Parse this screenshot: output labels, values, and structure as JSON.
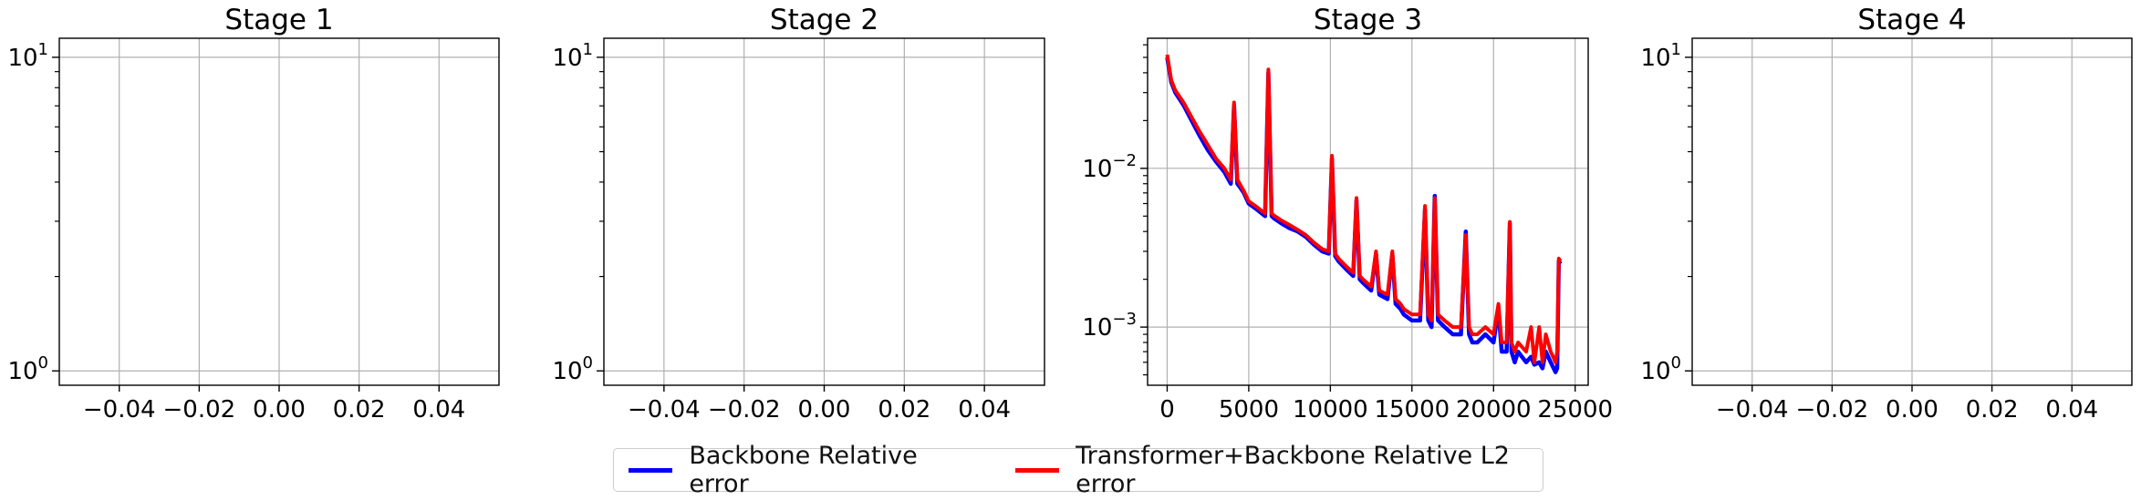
{
  "chart_data": [
    {
      "type": "line",
      "title": "Stage 1",
      "yscale": "log",
      "xlim": [
        -0.055,
        0.055
      ],
      "ylim": [
        0.9,
        11.5
      ],
      "xticks": [
        -0.04,
        -0.02,
        0.0,
        0.02,
        0.04
      ],
      "xtick_labels": [
        "−0.04",
        "−0.02",
        "0.00",
        "0.02",
        "0.04"
      ],
      "yticks": [
        1,
        10
      ],
      "ytick_labels": [
        [
          "10",
          "0"
        ],
        [
          "10",
          "1"
        ]
      ],
      "grid": true,
      "series": []
    },
    {
      "type": "line",
      "title": "Stage 2",
      "yscale": "log",
      "xlim": [
        -0.055,
        0.055
      ],
      "ylim": [
        0.9,
        11.5
      ],
      "xticks": [
        -0.04,
        -0.02,
        0.0,
        0.02,
        0.04
      ],
      "xtick_labels": [
        "−0.04",
        "−0.02",
        "0.00",
        "0.02",
        "0.04"
      ],
      "yticks": [
        1,
        10
      ],
      "ytick_labels": [
        [
          "10",
          "0"
        ],
        [
          "10",
          "1"
        ]
      ],
      "grid": true,
      "series": []
    },
    {
      "type": "line",
      "title": "Stage 3",
      "yscale": "log",
      "xlim": [
        -1200,
        25800
      ],
      "ylim": [
        0.00043,
        0.066
      ],
      "xticks": [
        0,
        5000,
        10000,
        15000,
        20000,
        25000
      ],
      "xtick_labels": [
        "0",
        "5000",
        "10000",
        "15000",
        "20000",
        "25000"
      ],
      "yticks": [
        0.001,
        0.01
      ],
      "ytick_labels": [
        [
          "10",
          "−3"
        ],
        [
          "10",
          "−2"
        ]
      ],
      "grid": true,
      "series": [
        {
          "name": "Backbone Relative error",
          "color": "#0000ff",
          "x": [
            0,
            250,
            500,
            1000,
            1500,
            2000,
            2500,
            3000,
            3500,
            3900,
            4100,
            4300,
            4500,
            4700,
            5000,
            5500,
            6000,
            6200,
            6400,
            6600,
            7000,
            7500,
            8000,
            8500,
            9000,
            9500,
            9900,
            10100,
            10300,
            10500,
            11000,
            11400,
            11600,
            11800,
            12000,
            12500,
            12800,
            13000,
            13500,
            13800,
            14000,
            14300,
            14500,
            15000,
            15500,
            15800,
            16000,
            16200,
            16400,
            16600,
            17000,
            17500,
            18000,
            18300,
            18500,
            18700,
            19000,
            19500,
            20000,
            20300,
            20500,
            20800,
            21000,
            21100,
            21300,
            21500,
            22000,
            22300,
            22500,
            22800,
            23000,
            23200,
            23500,
            23800,
            23900,
            24000,
            24100
          ],
          "y": [
            0.05,
            0.035,
            0.03,
            0.025,
            0.02,
            0.016,
            0.013,
            0.011,
            0.0095,
            0.008,
            0.025,
            0.008,
            0.0075,
            0.007,
            0.006,
            0.0055,
            0.005,
            0.04,
            0.005,
            0.0048,
            0.0045,
            0.0042,
            0.004,
            0.0037,
            0.0033,
            0.003,
            0.0029,
            0.0115,
            0.0028,
            0.0026,
            0.0023,
            0.0021,
            0.0063,
            0.002,
            0.0019,
            0.0017,
            0.0029,
            0.0016,
            0.0015,
            0.0029,
            0.0014,
            0.0013,
            0.0012,
            0.0011,
            0.0011,
            0.0055,
            0.0011,
            0.001,
            0.0067,
            0.0011,
            0.001,
            0.0009,
            0.0009,
            0.004,
            0.0009,
            0.0008,
            0.0008,
            0.0009,
            0.0008,
            0.0013,
            0.0007,
            0.0007,
            0.0045,
            0.0007,
            0.0006,
            0.0007,
            0.0006,
            0.00065,
            0.00058,
            0.0006,
            0.00055,
            0.0007,
            0.0006,
            0.00052,
            0.00055,
            0.0026,
            0.0025
          ]
        },
        {
          "name": "Transformer+Backbone Relative L2 error",
          "color": "#ff0000",
          "x": [
            0,
            250,
            500,
            1000,
            1500,
            2000,
            2500,
            3000,
            3500,
            3900,
            4100,
            4300,
            4500,
            4700,
            5000,
            5500,
            6000,
            6200,
            6400,
            6600,
            7000,
            7500,
            8000,
            8500,
            9000,
            9500,
            9900,
            10100,
            10300,
            10500,
            11000,
            11400,
            11600,
            11800,
            12000,
            12500,
            12800,
            13000,
            13500,
            13800,
            14000,
            14300,
            14500,
            15000,
            15500,
            15800,
            16000,
            16200,
            16400,
            16600,
            17000,
            17500,
            18000,
            18300,
            18500,
            18700,
            19000,
            19500,
            20000,
            20300,
            20500,
            20800,
            21000,
            21100,
            21300,
            21500,
            22000,
            22300,
            22500,
            22800,
            23000,
            23200,
            23500,
            23800,
            23900,
            24000,
            24100
          ],
          "y": [
            0.052,
            0.036,
            0.031,
            0.026,
            0.021,
            0.017,
            0.014,
            0.0115,
            0.01,
            0.0085,
            0.026,
            0.0085,
            0.0078,
            0.0072,
            0.0062,
            0.0057,
            0.0052,
            0.042,
            0.0052,
            0.005,
            0.0047,
            0.0044,
            0.0041,
            0.0038,
            0.0034,
            0.0031,
            0.003,
            0.012,
            0.0029,
            0.0027,
            0.0024,
            0.0022,
            0.0065,
            0.0021,
            0.002,
            0.0018,
            0.003,
            0.0017,
            0.0016,
            0.003,
            0.0015,
            0.0014,
            0.0013,
            0.0012,
            0.0012,
            0.0058,
            0.0012,
            0.0011,
            0.0065,
            0.0012,
            0.0011,
            0.001,
            0.001,
            0.0038,
            0.001,
            0.0009,
            0.0009,
            0.001,
            0.0009,
            0.0014,
            0.0008,
            0.0008,
            0.0046,
            0.0008,
            0.0007,
            0.0008,
            0.0007,
            0.001,
            0.0006,
            0.001,
            0.0006,
            0.0009,
            0.0007,
            0.0006,
            0.0007,
            0.0027,
            0.0026
          ]
        }
      ]
    },
    {
      "type": "line",
      "title": "Stage 4",
      "yscale": "log",
      "xlim": [
        -0.055,
        0.055
      ],
      "ylim": [
        0.9,
        11.5
      ],
      "xticks": [
        -0.04,
        -0.02,
        0.0,
        0.02,
        0.04
      ],
      "xtick_labels": [
        "−0.04",
        "−0.02",
        "0.00",
        "0.02",
        "0.04"
      ],
      "yticks": [
        1,
        10
      ],
      "ytick_labels": [
        [
          "10",
          "0"
        ],
        [
          "10",
          "1"
        ]
      ],
      "grid": true,
      "series": []
    }
  ],
  "legend": {
    "placement": "bottom-center",
    "entries": [
      {
        "label": "Backbone Relative error",
        "color": "#0000ff"
      },
      {
        "label": "Transformer+Backbone Relative L2 error",
        "color": "#ff0000"
      }
    ]
  }
}
